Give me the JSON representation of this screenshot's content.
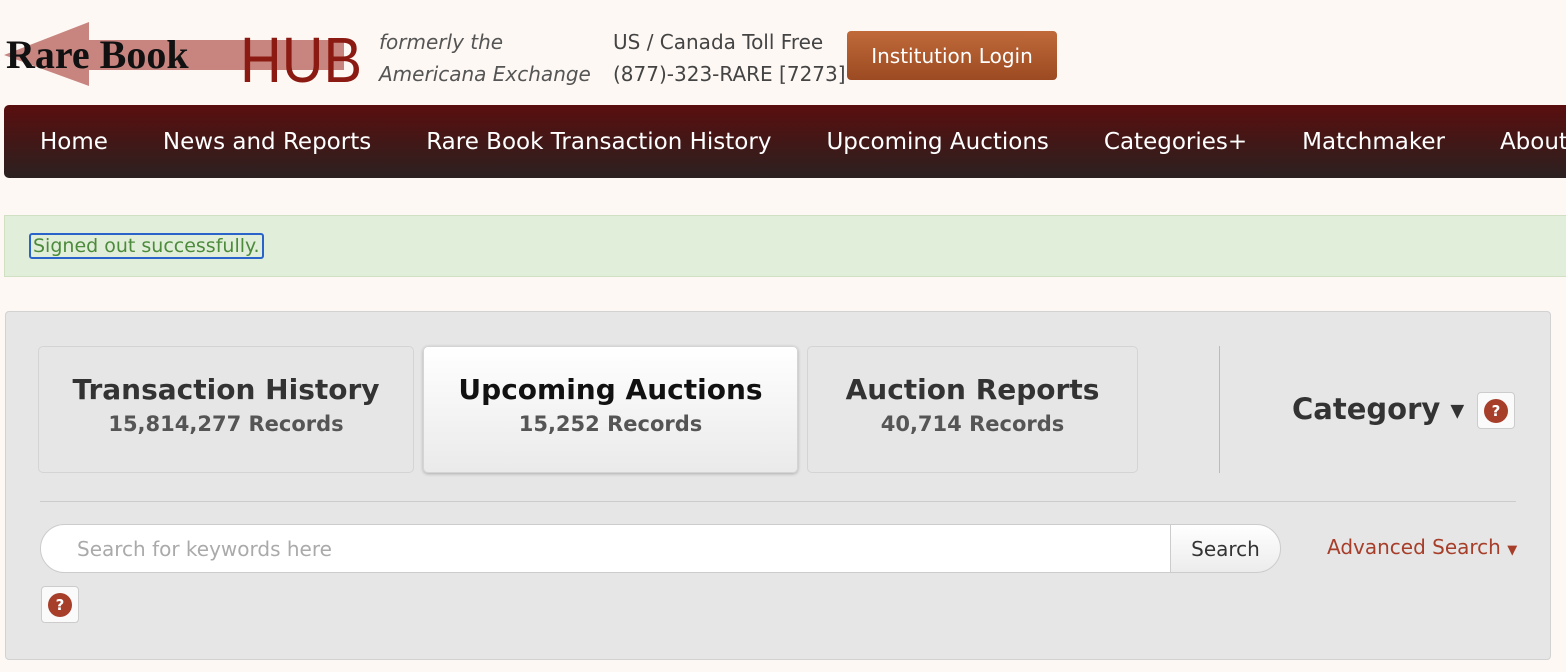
{
  "header": {
    "logo_text": "Rare Book HUB",
    "formerly_line1": "formerly the",
    "formerly_line2": "Americana Exchange",
    "phone_line1": "US / Canada Toll Free",
    "phone_line2": "(877)-323-RARE [7273]",
    "login_label": "Institution Login"
  },
  "nav": {
    "items": [
      "Home",
      "News and Reports",
      "Rare Book Transaction History",
      "Upcoming Auctions",
      "Categories+",
      "Matchmaker",
      "About"
    ]
  },
  "alert": {
    "message": "Signed out successfully."
  },
  "tabs": [
    {
      "title": "Transaction History",
      "records": "15,814,277 Records"
    },
    {
      "title": "Upcoming Auctions",
      "records": "15,252 Records",
      "active": true
    },
    {
      "title": "Auction Reports",
      "records": "40,714 Records"
    }
  ],
  "category": {
    "label": "Category"
  },
  "search": {
    "placeholder": "Search for keywords here",
    "value": "",
    "button": "Search",
    "advanced": "Advanced Search"
  },
  "help_symbol": "?",
  "colors": {
    "nav": "#4a1212",
    "accent": "#a63e2a",
    "alert_bg": "#e1eed9"
  }
}
